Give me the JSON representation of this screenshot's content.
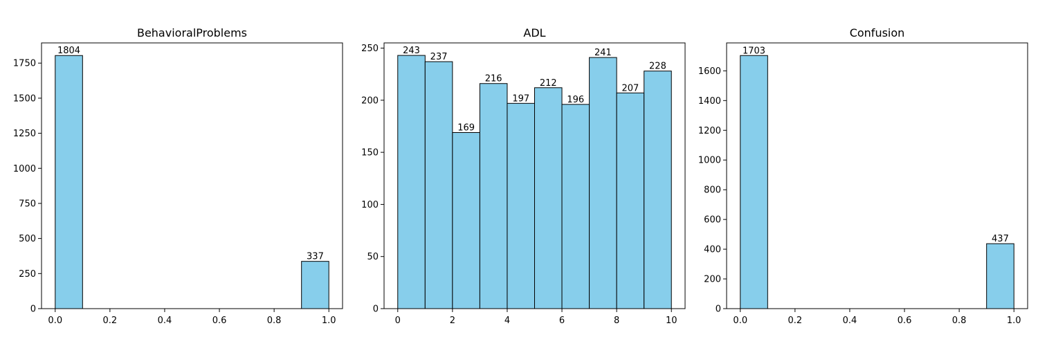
{
  "chart_data": [
    {
      "type": "bar",
      "title": "BehavioralProblems",
      "bins": [
        {
          "x0": 0.0,
          "x1": 0.1,
          "value": 1804
        },
        {
          "x0": 0.9,
          "x1": 1.0,
          "value": 337
        }
      ],
      "xlim": [
        -0.05,
        1.05
      ],
      "ylim": [
        0,
        1894
      ],
      "xticks": [
        0.0,
        0.2,
        0.4,
        0.6,
        0.8,
        1.0
      ],
      "xtick_labels": [
        "0.0",
        "0.2",
        "0.4",
        "0.6",
        "0.8",
        "1.0"
      ],
      "yticks": [
        0,
        250,
        500,
        750,
        1000,
        1250,
        1500,
        1750
      ],
      "ytick_labels": [
        "0",
        "250",
        "500",
        "750",
        "1000",
        "1250",
        "1500",
        "1750"
      ],
      "bar_color": "#87CEEB",
      "grid": false
    },
    {
      "type": "bar",
      "title": "ADL",
      "bins": [
        {
          "x0": 0,
          "x1": 1,
          "value": 243
        },
        {
          "x0": 1,
          "x1": 2,
          "value": 237
        },
        {
          "x0": 2,
          "x1": 3,
          "value": 169
        },
        {
          "x0": 3,
          "x1": 4,
          "value": 216
        },
        {
          "x0": 4,
          "x1": 5,
          "value": 197
        },
        {
          "x0": 5,
          "x1": 6,
          "value": 212
        },
        {
          "x0": 6,
          "x1": 7,
          "value": 196
        },
        {
          "x0": 7,
          "x1": 8,
          "value": 241
        },
        {
          "x0": 8,
          "x1": 9,
          "value": 207
        },
        {
          "x0": 9,
          "x1": 10,
          "value": 228
        }
      ],
      "xlim": [
        -0.5,
        10.5
      ],
      "ylim": [
        0,
        255
      ],
      "xticks": [
        0,
        2,
        4,
        6,
        8,
        10
      ],
      "xtick_labels": [
        "0",
        "2",
        "4",
        "6",
        "8",
        "10"
      ],
      "yticks": [
        0,
        50,
        100,
        150,
        200,
        250
      ],
      "ytick_labels": [
        "0",
        "50",
        "100",
        "150",
        "200",
        "250"
      ],
      "bar_color": "#87CEEB",
      "grid": false
    },
    {
      "type": "bar",
      "title": "Confusion",
      "bins": [
        {
          "x0": 0.0,
          "x1": 0.1,
          "value": 1703
        },
        {
          "x0": 0.9,
          "x1": 1.0,
          "value": 437
        }
      ],
      "xlim": [
        -0.05,
        1.05
      ],
      "ylim": [
        0,
        1788
      ],
      "xticks": [
        0.0,
        0.2,
        0.4,
        0.6,
        0.8,
        1.0
      ],
      "xtick_labels": [
        "0.0",
        "0.2",
        "0.4",
        "0.6",
        "0.8",
        "1.0"
      ],
      "yticks": [
        0,
        200,
        400,
        600,
        800,
        1000,
        1200,
        1400,
        1600
      ],
      "ytick_labels": [
        "0",
        "200",
        "400",
        "600",
        "800",
        "1000",
        "1200",
        "1400",
        "1600"
      ],
      "bar_color": "#87CEEB",
      "grid": false
    }
  ]
}
